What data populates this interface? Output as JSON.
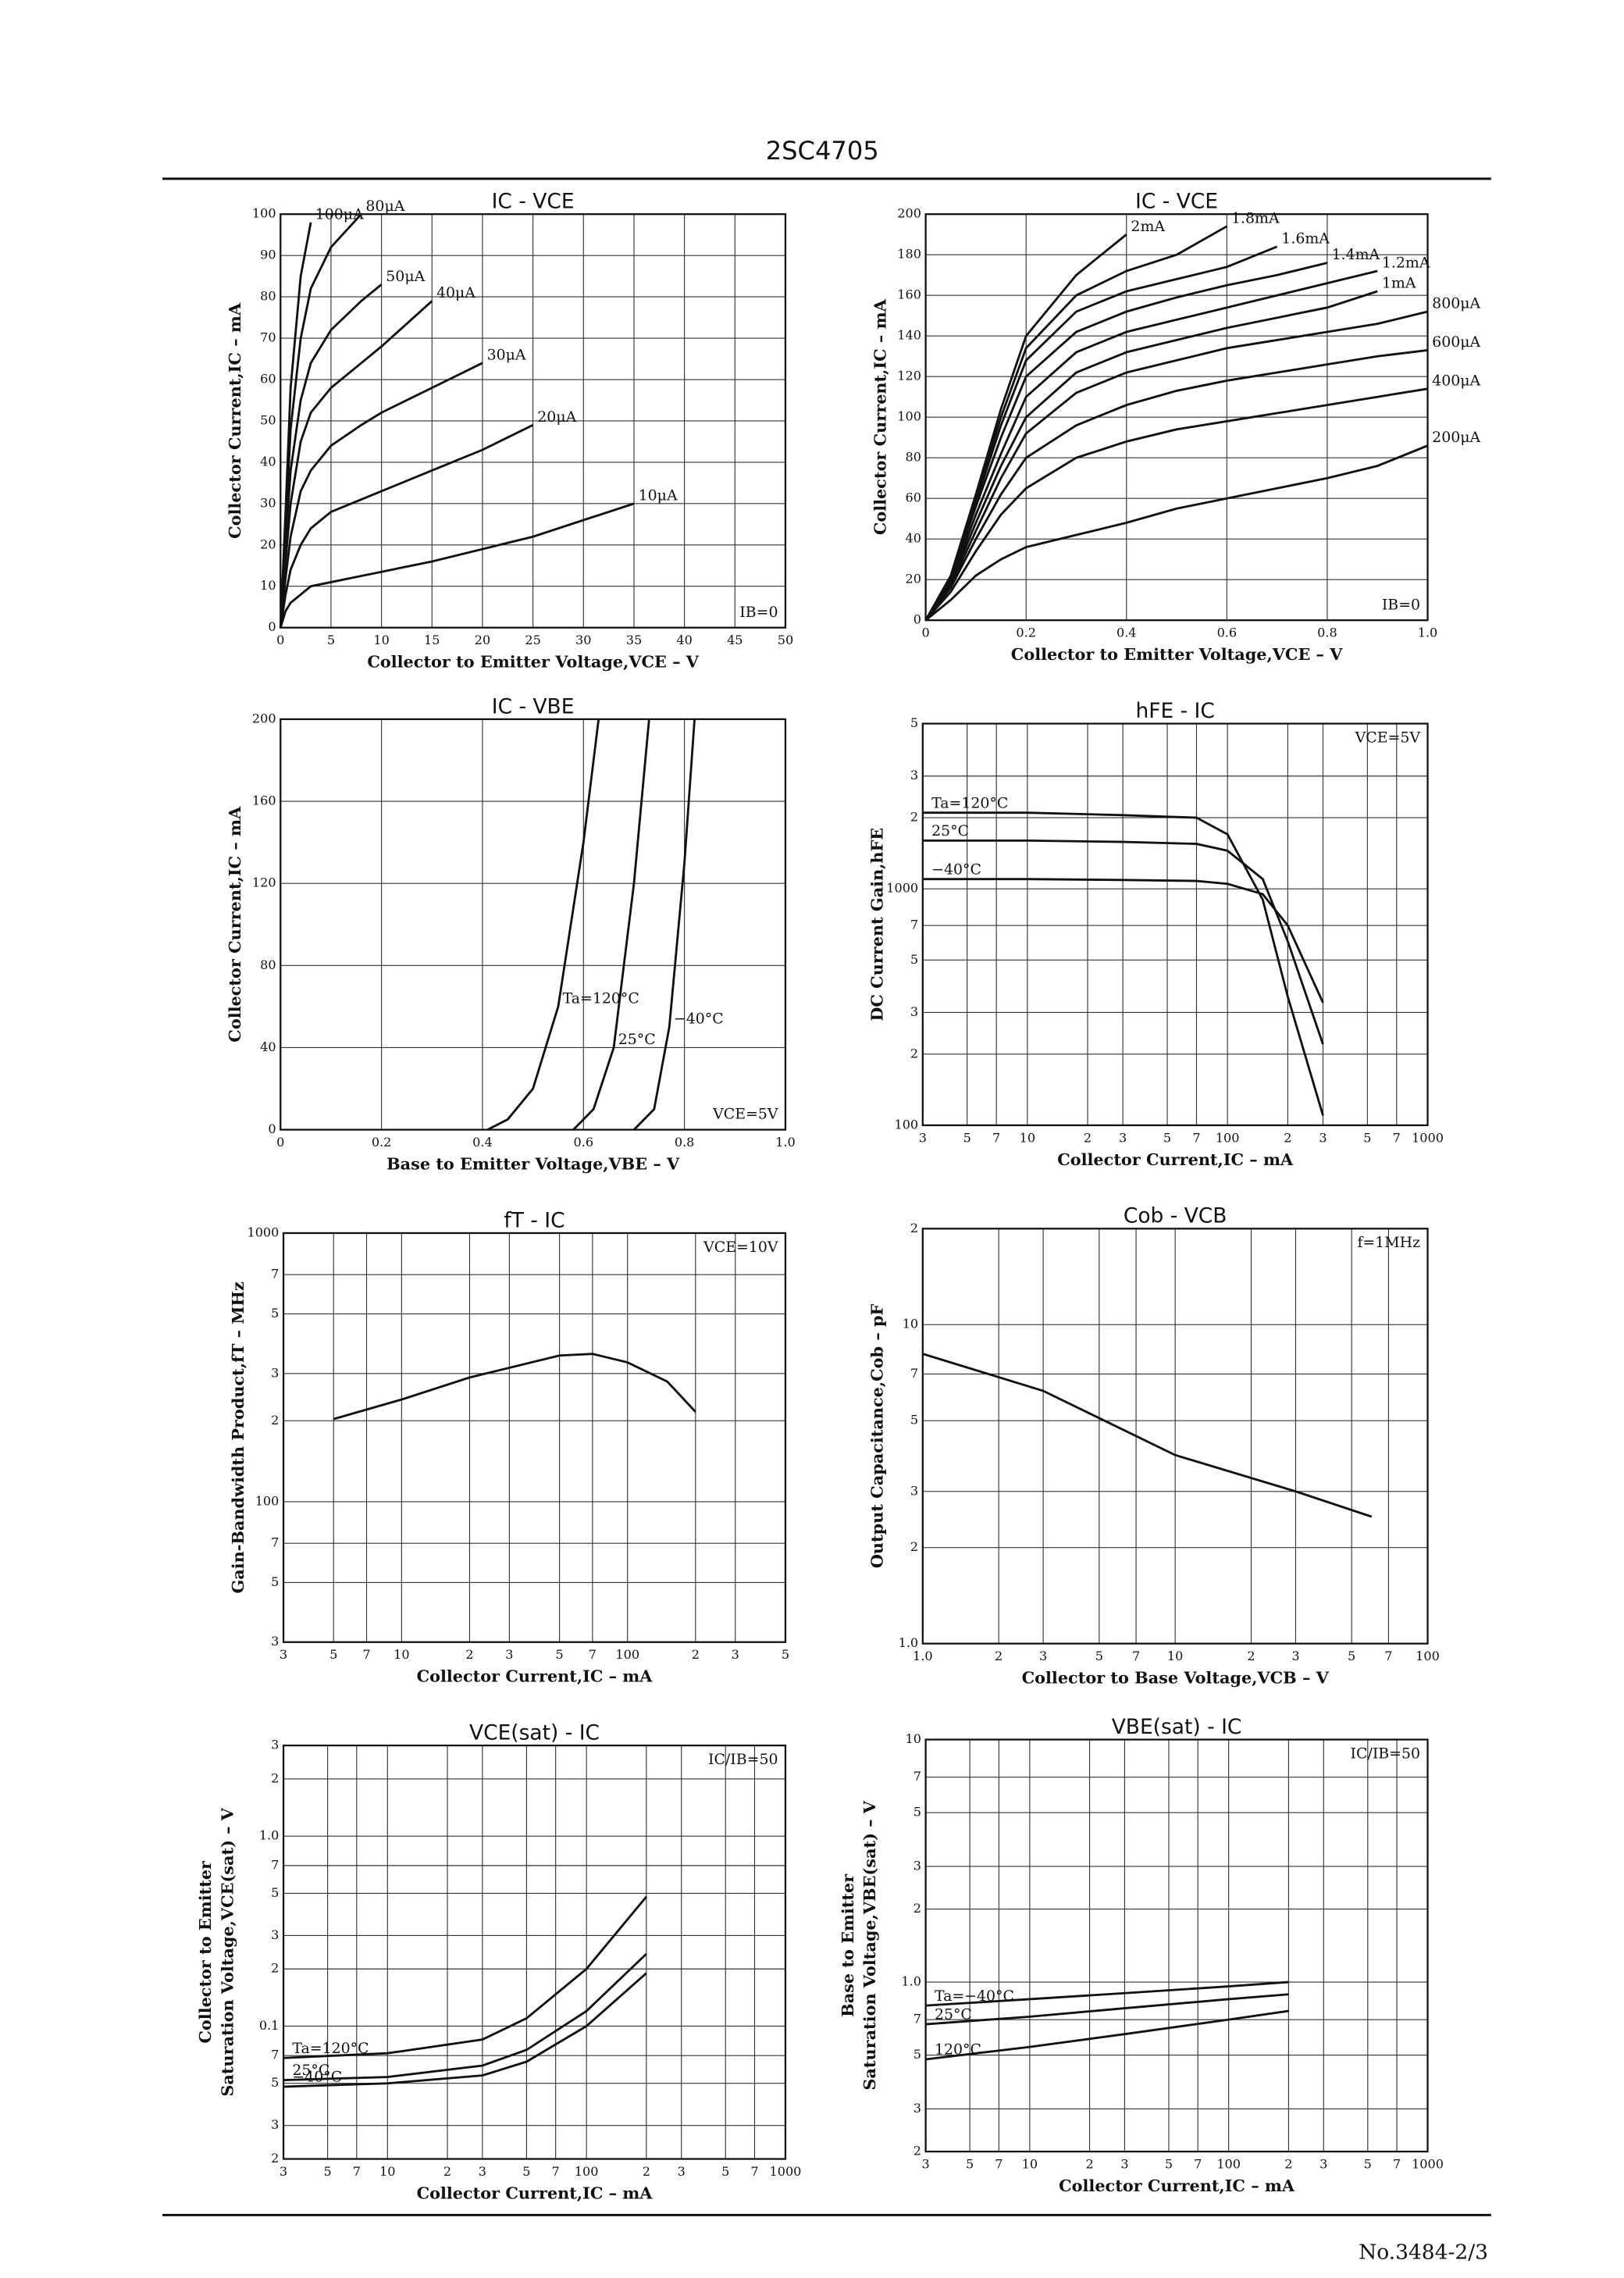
{
  "header": {
    "title": "2SC4705"
  },
  "footer": {
    "page": "No.3484-2/3"
  },
  "chart_data": [
    {
      "type": "line",
      "title": "IC - VCE",
      "xlabel": "Collector to Emitter Voltage,VCE – V",
      "ylabel": "Collector Current,IC – mA",
      "annotation": "IB=0",
      "annotation_position": "bottom-right",
      "xlim": [
        0,
        50
      ],
      "ylim": [
        0,
        100
      ],
      "xticks": [
        0,
        5,
        10,
        15,
        20,
        25,
        30,
        35,
        40,
        45,
        50
      ],
      "yticks": [
        0,
        10,
        20,
        30,
        40,
        50,
        60,
        70,
        80,
        90,
        100
      ],
      "grid": true,
      "x": [
        0,
        0.5,
        1,
        2,
        3,
        5,
        8,
        10,
        15,
        20,
        25,
        30,
        35
      ],
      "series": [
        {
          "name": "10μA",
          "color": "#111111",
          "values": [
            0,
            4,
            6,
            8,
            10,
            11,
            12.5,
            13.5,
            16,
            19,
            22,
            26,
            30
          ]
        },
        {
          "name": "20μA",
          "color": "#111111",
          "values": [
            0,
            8,
            14,
            20,
            24,
            28,
            31,
            33,
            38,
            43,
            49,
            null,
            null
          ]
        },
        {
          "name": "30μA",
          "color": "#111111",
          "values": [
            0,
            12,
            22,
            33,
            38,
            44,
            49,
            52,
            58,
            64,
            null,
            null,
            null
          ]
        },
        {
          "name": "40μA",
          "color": "#111111",
          "values": [
            0,
            16,
            30,
            45,
            52,
            58,
            64,
            68,
            79,
            null,
            null,
            null,
            null
          ]
        },
        {
          "name": "50μA",
          "color": "#111111",
          "values": [
            0,
            20,
            38,
            55,
            64,
            72,
            79,
            83,
            null,
            null,
            null,
            null,
            null
          ]
        },
        {
          "name": "80μA",
          "color": "#111111",
          "values": [
            0,
            24,
            48,
            70,
            82,
            92,
            100,
            null,
            null,
            null,
            null,
            null,
            null
          ]
        },
        {
          "name": "100μA",
          "color": "#111111",
          "values": [
            0,
            28,
            58,
            85,
            98,
            null,
            null,
            null,
            null,
            null,
            null,
            null,
            null
          ]
        }
      ]
    },
    {
      "type": "line",
      "title": "IC - VCE",
      "xlabel": "Collector to Emitter Voltage,VCE – V",
      "ylabel": "Collector Current,IC – mA",
      "annotation": "IB=0",
      "annotation_position": "bottom-right",
      "xlim": [
        0,
        1
      ],
      "ylim": [
        0,
        200
      ],
      "xticks": [
        0,
        0.2,
        0.4,
        0.6,
        0.8,
        {
          "value": 1,
          "label": "1.0"
        }
      ],
      "yticks": [
        0,
        20,
        40,
        60,
        80,
        100,
        120,
        140,
        160,
        180,
        200
      ],
      "grid": true,
      "x": [
        0,
        0.05,
        0.1,
        0.15,
        0.2,
        0.3,
        0.4,
        0.5,
        0.6,
        0.7,
        0.8,
        0.9,
        1
      ],
      "series": [
        {
          "name": "200μA",
          "color": "#111111",
          "values": [
            0,
            10,
            22,
            30,
            36,
            42,
            48,
            55,
            60,
            65,
            70,
            76,
            86
          ]
        },
        {
          "name": "400μA",
          "color": "#111111",
          "values": [
            0,
            14,
            34,
            52,
            65,
            80,
            88,
            94,
            98,
            102,
            106,
            110,
            114
          ]
        },
        {
          "name": "600μA",
          "color": "#111111",
          "values": [
            0,
            16,
            40,
            62,
            80,
            96,
            106,
            113,
            118,
            122,
            126,
            130,
            133
          ]
        },
        {
          "name": "800μA",
          "color": "#111111",
          "values": [
            0,
            17,
            44,
            70,
            92,
            112,
            122,
            128,
            134,
            138,
            142,
            146,
            152
          ]
        },
        {
          "name": "1mA",
          "color": "#111111",
          "values": [
            0,
            18,
            48,
            76,
            100,
            122,
            132,
            138,
            144,
            149,
            154,
            162,
            null
          ]
        },
        {
          "name": "1.2mA",
          "color": "#111111",
          "values": [
            0,
            19,
            52,
            82,
            110,
            132,
            142,
            148,
            154,
            160,
            166,
            172,
            null
          ]
        },
        {
          "name": "1.4mA",
          "color": "#111111",
          "values": [
            0,
            20,
            56,
            90,
            120,
            142,
            152,
            159,
            165,
            170,
            176,
            null,
            null
          ]
        },
        {
          "name": "1.6mA",
          "color": "#111111",
          "values": [
            0,
            20,
            58,
            96,
            128,
            152,
            162,
            168,
            174,
            184,
            null,
            null,
            null
          ]
        },
        {
          "name": "1.8mA",
          "color": "#111111",
          "values": [
            0,
            21,
            60,
            100,
            134,
            160,
            172,
            180,
            194,
            null,
            null,
            null,
            null
          ]
        },
        {
          "name": "2mA",
          "color": "#111111",
          "values": [
            0,
            22,
            62,
            104,
            140,
            170,
            190,
            null,
            null,
            null,
            null,
            null,
            null
          ]
        }
      ]
    },
    {
      "type": "line",
      "title": "IC - VBE",
      "xlabel": "Base to Emitter Voltage,VBE – V",
      "ylabel": "Collector Current,IC – mA",
      "annotation": "VCE=5V",
      "annotation_position": "bottom-right",
      "xlim": [
        0,
        1
      ],
      "ylim": [
        0,
        200
      ],
      "xticks": [
        0,
        0.2,
        0.4,
        0.6,
        0.8,
        {
          "value": 1,
          "label": "1.0"
        }
      ],
      "yticks": [
        0,
        40,
        80,
        120,
        160,
        200
      ],
      "grid": true,
      "series": [
        {
          "name": "Ta=120°C",
          "color": "#111111",
          "x": [
            0.41,
            0.45,
            0.5,
            0.55,
            0.6,
            0.63
          ],
          "values": [
            0,
            5,
            20,
            60,
            140,
            200
          ]
        },
        {
          "name": "25°C",
          "color": "#111111",
          "x": [
            0.58,
            0.62,
            0.66,
            0.7,
            0.73
          ],
          "values": [
            0,
            10,
            40,
            120,
            200
          ]
        },
        {
          "name": "−40°C",
          "color": "#111111",
          "x": [
            0.7,
            0.74,
            0.77,
            0.8,
            0.82
          ],
          "values": [
            0,
            10,
            50,
            130,
            200
          ]
        }
      ]
    },
    {
      "type": "line",
      "title": "hFE - IC",
      "xlabel": "Collector Current,IC – mA",
      "ylabel": "DC Current Gain,hFE",
      "annotation": "VCE=5V",
      "annotation_position": "top-right",
      "xlog": true,
      "ylog": true,
      "xlim": [
        3,
        1000
      ],
      "ylim": [
        100,
        5000
      ],
      "xticks": [
        3,
        5,
        7,
        10,
        {
          "value": 20,
          "label": "2"
        },
        {
          "value": 30,
          "label": "3"
        },
        {
          "value": 50,
          "label": "5"
        },
        {
          "value": 70,
          "label": "7"
        },
        100,
        {
          "value": 200,
          "label": "2"
        },
        {
          "value": 300,
          "label": "3"
        },
        {
          "value": 500,
          "label": "5"
        },
        {
          "value": 700,
          "label": "7"
        },
        1000
      ],
      "yticks": [
        100,
        {
          "value": 200,
          "label": "2"
        },
        {
          "value": 300,
          "label": "3"
        },
        {
          "value": 500,
          "label": "5"
        },
        {
          "value": 700,
          "label": "7"
        },
        1000,
        {
          "value": 2000,
          "label": "2"
        },
        {
          "value": 3000,
          "label": "3"
        },
        {
          "value": 5000,
          "label": "5"
        }
      ],
      "grid": true,
      "x": [
        3,
        10,
        30,
        70,
        100,
        150,
        200,
        300
      ],
      "series": [
        {
          "name": "Ta=120°C",
          "color": "#111111",
          "values": [
            2100,
            2100,
            2050,
            2000,
            1700,
            900,
            350,
            110
          ]
        },
        {
          "name": "25°C",
          "color": "#111111",
          "values": [
            1600,
            1600,
            1580,
            1550,
            1450,
            1100,
            600,
            220
          ]
        },
        {
          "name": "−40°C",
          "color": "#111111",
          "values": [
            1100,
            1100,
            1090,
            1080,
            1050,
            950,
            700,
            330
          ]
        }
      ]
    },
    {
      "type": "line",
      "title": "fT - IC",
      "xlabel": "Collector Current,IC – mA",
      "ylabel": "Gain-Bandwidth Product,fT – MHz",
      "annotation": "VCE=10V",
      "annotation_position": "top-right",
      "xlog": true,
      "ylog": true,
      "xlim": [
        3,
        500
      ],
      "ylim": [
        30,
        1000
      ],
      "xticks": [
        3,
        5,
        7,
        10,
        {
          "value": 20,
          "label": "2"
        },
        {
          "value": 30,
          "label": "3"
        },
        {
          "value": 50,
          "label": "5"
        },
        {
          "value": 70,
          "label": "7"
        },
        100,
        {
          "value": 200,
          "label": "2"
        },
        {
          "value": 300,
          "label": "3"
        },
        {
          "value": 500,
          "label": "5"
        }
      ],
      "yticks": [
        {
          "value": 30,
          "label": "3"
        },
        {
          "value": 50,
          "label": "5"
        },
        {
          "value": 70,
          "label": "7"
        },
        100,
        {
          "value": 200,
          "label": "2"
        },
        {
          "value": 300,
          "label": "3"
        },
        {
          "value": 500,
          "label": "5"
        },
        {
          "value": 700,
          "label": "7"
        },
        1000
      ],
      "grid": true,
      "x": [
        5,
        10,
        20,
        50,
        70,
        100,
        150,
        200
      ],
      "series": [
        {
          "color": "#111111",
          "values": [
            203,
            240,
            290,
            350,
            355,
            330,
            280,
            216
          ]
        }
      ]
    },
    {
      "type": "line",
      "title": "Cob - VCB",
      "xlabel": "Collector to Base Voltage,VCB – V",
      "ylabel": "Output Capacitance,Cob – pF",
      "annotation": "f=1MHz",
      "annotation_position": "top-right",
      "xlog": true,
      "ylog": true,
      "xlim": [
        1,
        100
      ],
      "ylim": [
        1,
        20
      ],
      "xticks": [
        {
          "value": 1,
          "label": "1.0"
        },
        2,
        3,
        5,
        7,
        10,
        {
          "value": 20,
          "label": "2"
        },
        {
          "value": 30,
          "label": "3"
        },
        {
          "value": 50,
          "label": "5"
        },
        {
          "value": 70,
          "label": "7"
        },
        100
      ],
      "yticks": [
        {
          "value": 1,
          "label": "1.0"
        },
        2,
        3,
        5,
        7,
        10,
        {
          "value": 20,
          "label": "2"
        }
      ],
      "grid": true,
      "x": [
        1,
        3,
        10,
        30,
        60
      ],
      "series": [
        {
          "color": "#111111",
          "values": [
            8.1,
            6.2,
            3.9,
            3.0,
            2.5
          ]
        }
      ]
    },
    {
      "type": "line",
      "title": "VCE(sat) - IC",
      "xlabel": "Collector Current,IC – mA",
      "ylabel": [
        "Collector to Emitter",
        "Saturation Voltage,VCE(sat) – V"
      ],
      "annotation": "IC/IB=50",
      "annotation_position": "top-right",
      "xlog": true,
      "ylog": true,
      "xlim": [
        3,
        1000
      ],
      "ylim": [
        0.02,
        3
      ],
      "xticks": [
        3,
        5,
        7,
        10,
        {
          "value": 20,
          "label": "2"
        },
        {
          "value": 30,
          "label": "3"
        },
        {
          "value": 50,
          "label": "5"
        },
        {
          "value": 70,
          "label": "7"
        },
        100,
        {
          "value": 200,
          "label": "2"
        },
        {
          "value": 300,
          "label": "3"
        },
        {
          "value": 500,
          "label": "5"
        },
        {
          "value": 700,
          "label": "7"
        },
        1000
      ],
      "yticks": [
        {
          "value": 0.02,
          "label": "2"
        },
        {
          "value": 0.03,
          "label": "3"
        },
        {
          "value": 0.05,
          "label": "5"
        },
        {
          "value": 0.07,
          "label": "7"
        },
        0.1,
        {
          "value": 0.2,
          "label": "2"
        },
        {
          "value": 0.3,
          "label": "3"
        },
        {
          "value": 0.5,
          "label": "5"
        },
        {
          "value": 0.7,
          "label": "7"
        },
        {
          "value": 1,
          "label": "1.0"
        },
        2,
        3
      ],
      "grid": true,
      "x": [
        3,
        10,
        30,
        50,
        100,
        200
      ],
      "series": [
        {
          "name": "Ta=120°C",
          "color": "#111111",
          "values": [
            0.068,
            0.072,
            0.085,
            0.11,
            0.2,
            0.48
          ]
        },
        {
          "name": "25°C",
          "color": "#111111",
          "values": [
            0.052,
            0.054,
            0.062,
            0.075,
            0.12,
            0.24
          ]
        },
        {
          "name": "−40°C",
          "color": "#111111",
          "values": [
            0.048,
            0.05,
            0.055,
            0.065,
            0.1,
            0.19
          ]
        }
      ]
    },
    {
      "type": "line",
      "title": "VBE(sat) - IC",
      "xlabel": "Collector Current,IC – mA",
      "ylabel": [
        "Base to Emitter",
        "Saturation Voltage,VBE(sat) – V"
      ],
      "annotation": "IC/IB=50",
      "annotation_position": "top-right",
      "xlog": true,
      "ylog": true,
      "xlim": [
        3,
        1000
      ],
      "ylim": [
        0.2,
        10
      ],
      "xticks": [
        3,
        5,
        7,
        10,
        {
          "value": 20,
          "label": "2"
        },
        {
          "value": 30,
          "label": "3"
        },
        {
          "value": 50,
          "label": "5"
        },
        {
          "value": 70,
          "label": "7"
        },
        100,
        {
          "value": 200,
          "label": "2"
        },
        {
          "value": 300,
          "label": "3"
        },
        {
          "value": 500,
          "label": "5"
        },
        {
          "value": 700,
          "label": "7"
        },
        1000
      ],
      "yticks": [
        {
          "value": 0.2,
          "label": "2"
        },
        {
          "value": 0.3,
          "label": "3"
        },
        {
          "value": 0.5,
          "label": "5"
        },
        {
          "value": 0.7,
          "label": "7"
        },
        {
          "value": 1,
          "label": "1.0"
        },
        2,
        3,
        5,
        7,
        10
      ],
      "grid": true,
      "x": [
        3,
        10,
        30,
        100,
        200
      ],
      "series": [
        {
          "name": "Ta=−40°C",
          "color": "#111111",
          "values": [
            0.8,
            0.85,
            0.9,
            0.96,
            1.0
          ]
        },
        {
          "name": "25°C",
          "color": "#111111",
          "values": [
            0.67,
            0.72,
            0.78,
            0.85,
            0.89
          ]
        },
        {
          "name": "120°C",
          "color": "#111111",
          "values": [
            0.48,
            0.54,
            0.61,
            0.7,
            0.76
          ]
        }
      ]
    }
  ]
}
